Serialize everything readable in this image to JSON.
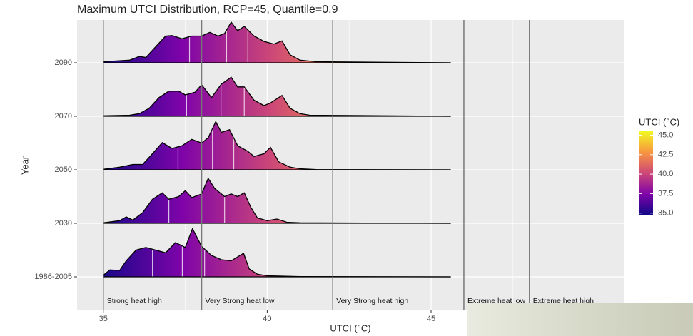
{
  "chart_data": {
    "type": "ridgeline",
    "title": "Maximum UTCI Distribution, RCP=45, Quantile=0.9",
    "x_label": "UTCI (°C)",
    "y_label": "Year",
    "xlim": [
      34.2,
      50.9
    ],
    "xticks": [
      35,
      40,
      45
    ],
    "x_minor_ticks": [
      37.5,
      42.5,
      47.5,
      50
    ],
    "grid": true,
    "categories": [
      "1986-2005",
      "2030",
      "2050",
      "2070",
      "2090"
    ],
    "series": [
      {
        "name": "1986-2005",
        "x": [
          35.0,
          35.2,
          35.5,
          35.7,
          36.0,
          36.3,
          36.6,
          36.9,
          37.2,
          37.5,
          37.72,
          38.0,
          38.3,
          38.6,
          38.9,
          39.28,
          39.45,
          39.7,
          40.0,
          41.0,
          45.6
        ],
        "values": [
          0.03,
          0.13,
          0.12,
          0.3,
          0.5,
          0.55,
          0.5,
          0.45,
          0.64,
          0.55,
          0.9,
          0.57,
          0.4,
          0.32,
          0.3,
          0.44,
          0.15,
          0.05,
          0.02,
          0.005,
          0
        ],
        "quantiles": [
          36.5,
          37.41,
          38.09
        ]
      },
      {
        "name": "2030",
        "x": [
          35.0,
          35.5,
          35.7,
          35.9,
          36.2,
          36.5,
          36.8,
          37.0,
          37.3,
          37.5,
          37.7,
          38.0,
          38.2,
          38.4,
          38.7,
          38.9,
          39.1,
          39.3,
          39.5,
          39.7,
          40.0,
          40.3,
          40.6,
          41.0,
          45.6
        ],
        "values": [
          0.01,
          0.05,
          0.12,
          0.06,
          0.2,
          0.45,
          0.57,
          0.45,
          0.5,
          0.61,
          0.48,
          0.55,
          0.84,
          0.65,
          0.5,
          0.55,
          0.5,
          0.57,
          0.3,
          0.1,
          0.05,
          0.08,
          0.02,
          0.01,
          0
        ],
        "quantiles": [
          37.0,
          38.0,
          38.7
        ]
      },
      {
        "name": "2050",
        "x": [
          35.0,
          35.5,
          35.9,
          36.2,
          36.5,
          36.8,
          37.1,
          37.4,
          37.7,
          38.0,
          38.2,
          38.43,
          38.6,
          38.85,
          39.1,
          39.4,
          39.6,
          39.9,
          40.1,
          40.35,
          40.7,
          41.0,
          41.5,
          45.6
        ],
        "values": [
          0.01,
          0.05,
          0.1,
          0.1,
          0.3,
          0.51,
          0.4,
          0.45,
          0.57,
          0.5,
          0.6,
          0.9,
          0.7,
          0.75,
          0.45,
          0.35,
          0.25,
          0.3,
          0.42,
          0.15,
          0.05,
          0.02,
          0.005,
          0
        ],
        "quantiles": [
          37.28,
          38.33,
          38.98
        ]
      },
      {
        "name": "2070",
        "x": [
          35.0,
          35.8,
          36.1,
          36.4,
          36.7,
          37.0,
          37.3,
          37.5,
          37.8,
          38.0,
          38.3,
          38.6,
          38.9,
          39.1,
          39.3,
          39.6,
          39.9,
          40.1,
          40.45,
          40.7,
          41.0,
          41.3,
          45.6
        ],
        "values": [
          0.01,
          0.02,
          0.05,
          0.15,
          0.35,
          0.47,
          0.47,
          0.4,
          0.45,
          0.59,
          0.35,
          0.6,
          0.73,
          0.55,
          0.55,
          0.3,
          0.2,
          0.25,
          0.39,
          0.15,
          0.05,
          0.02,
          0
        ],
        "quantiles": [
          37.54,
          38.59,
          39.3
        ]
      },
      {
        "name": "2090",
        "x": [
          35.0,
          35.8,
          36.1,
          36.3,
          36.6,
          36.9,
          37.1,
          37.4,
          37.7,
          38.0,
          38.25,
          38.5,
          38.7,
          38.9,
          39.1,
          39.3,
          39.6,
          39.9,
          40.2,
          40.45,
          40.7,
          41.0,
          41.5,
          45.6
        ],
        "values": [
          0.02,
          0.05,
          0.12,
          0.1,
          0.3,
          0.5,
          0.51,
          0.45,
          0.5,
          0.5,
          0.57,
          0.5,
          0.55,
          0.76,
          0.6,
          0.68,
          0.5,
          0.4,
          0.35,
          0.41,
          0.15,
          0.05,
          0.02,
          0
        ],
        "quantiles": [
          37.63,
          38.76,
          39.41
        ]
      }
    ],
    "vlines": [
      35,
      38,
      42,
      46,
      48
    ],
    "zone_labels": [
      "Strong heat high",
      "Very Strong heat low",
      "Very Strong heat high",
      "Extreme heat low",
      "Extreme heat high"
    ],
    "legend": {
      "title": "UTCI (°C)",
      "range": [
        34.7,
        45.5
      ],
      "ticks": [
        {
          "value": 35,
          "label": "35.0"
        },
        {
          "value": 37.5,
          "label": "37.5"
        },
        {
          "value": 40,
          "label": "40.0"
        },
        {
          "value": 42.5,
          "label": "42.5"
        },
        {
          "value": 45,
          "label": "45.0"
        }
      ],
      "palette": [
        "#0d0887",
        "#7e03a8",
        "#cc4778",
        "#f89540",
        "#f0f921"
      ]
    }
  }
}
